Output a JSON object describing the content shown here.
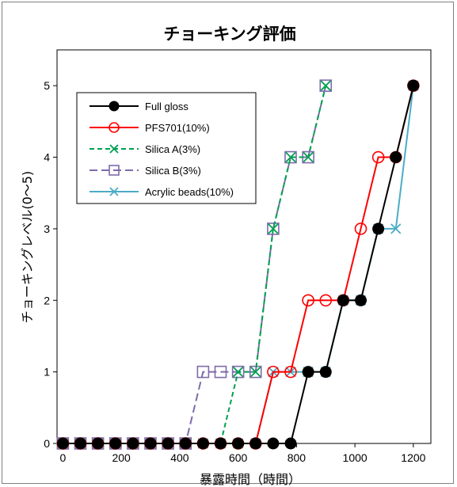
{
  "chart_data": {
    "type": "line",
    "title": "チョーキング評価",
    "xlabel": "暴露時間（時間）",
    "ylabel": "チョーキングレベル(0～5)",
    "xlim": [
      -20,
      1260
    ],
    "ylim": [
      0,
      5.5
    ],
    "xticks": [
      "0",
      "200",
      "400",
      "600",
      "800",
      "1000",
      "1200"
    ],
    "yticks": [
      "0",
      "1",
      "2",
      "3",
      "4",
      "5"
    ],
    "grid": false,
    "legend_position": "top-left",
    "series": [
      {
        "name": "Full gloss",
        "color": "#000000",
        "dash": "solid",
        "marker": "filled-circle",
        "x": [
          0,
          60,
          120,
          180,
          240,
          300,
          360,
          420,
          480,
          540,
          600,
          660,
          720,
          780,
          840,
          900,
          960,
          1020,
          1080,
          1140,
          1200
        ],
        "y": [
          0,
          0,
          0,
          0,
          0,
          0,
          0,
          0,
          0,
          0,
          0,
          0,
          0,
          0,
          1,
          1,
          2,
          2,
          3,
          4,
          5
        ]
      },
      {
        "name": "PFS701(10%)",
        "color": "#ff0000",
        "dash": "solid",
        "marker": "open-circle",
        "x": [
          0,
          60,
          120,
          180,
          240,
          300,
          360,
          420,
          480,
          540,
          600,
          660,
          720,
          780,
          840,
          900,
          960,
          1020,
          1080,
          1140,
          1200
        ],
        "y": [
          0,
          0,
          0,
          0,
          0,
          0,
          0,
          0,
          0,
          0,
          0,
          0,
          1,
          1,
          2,
          2,
          2,
          3,
          4,
          4,
          5
        ]
      },
      {
        "name": "Silica A(3%)",
        "color": "#00a050",
        "dash": "dash",
        "marker": "x",
        "x": [
          0,
          60,
          120,
          180,
          240,
          300,
          360,
          420,
          480,
          540,
          600,
          660,
          720,
          780,
          840,
          900
        ],
        "y": [
          0,
          0,
          0,
          0,
          0,
          0,
          0,
          0,
          0,
          0,
          1,
          1,
          3,
          4,
          4,
          5
        ]
      },
      {
        "name": "Silica B(3%)",
        "color": "#7f6bab",
        "dash": "longdash",
        "marker": "open-square",
        "x": [
          0,
          60,
          120,
          180,
          240,
          300,
          360,
          420,
          480,
          540,
          600,
          660,
          720,
          780,
          840,
          900
        ],
        "y": [
          0,
          0,
          0,
          0,
          0,
          0,
          0,
          0,
          1,
          1,
          1,
          1,
          3,
          4,
          4,
          5
        ]
      },
      {
        "name": "Acrylic beads(10%)",
        "color": "#4bacc6",
        "dash": "solid",
        "marker": "x",
        "x": [
          0,
          60,
          120,
          180,
          240,
          300,
          360,
          420,
          480,
          540,
          600,
          660,
          720,
          780,
          840,
          900,
          960,
          1020,
          1080,
          1140,
          1200
        ],
        "y": [
          0,
          0,
          0,
          0,
          0,
          0,
          0,
          0,
          0,
          0,
          0,
          0,
          1,
          1,
          1,
          1,
          2,
          2,
          3,
          3,
          5
        ]
      }
    ]
  }
}
